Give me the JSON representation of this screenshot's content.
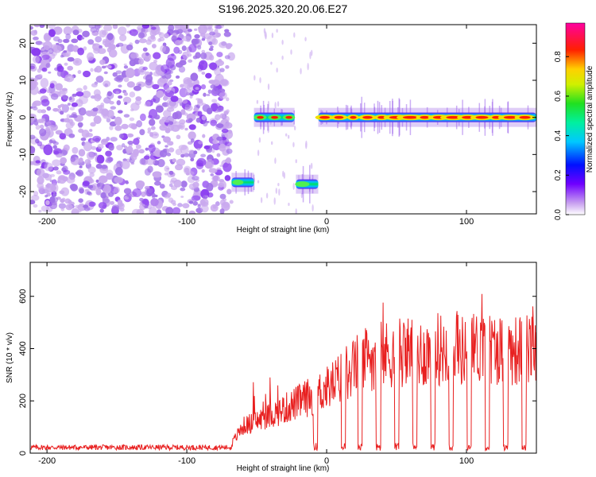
{
  "title": "S196.2025.320.20.06.E27",
  "colors": {
    "snr_line": "#e82020",
    "frame": "#000000",
    "sparse_fill": "#c9a8ee",
    "sparse_dark": "#8a3cf0"
  },
  "chart_data": [
    {
      "type": "heatmap",
      "title": "",
      "xlabel": "Height of straight line (km)",
      "ylabel": "Frequency (Hz)",
      "xlim": [
        -212,
        150
      ],
      "ylim": [
        -26,
        25
      ],
      "x_ticks": [
        -200,
        -100,
        0,
        100
      ],
      "y_ticks": [
        -20,
        -10,
        0,
        10,
        20
      ],
      "x_tick_labels": [
        "-200",
        "-100",
        "0",
        "100"
      ],
      "y_tick_labels": [
        "-20",
        "-10",
        "0",
        "10",
        "20"
      ],
      "colorbar": {
        "label": "Normalized spectral amplitude",
        "range": [
          0,
          0.97
        ],
        "ticks": [
          0,
          0.2,
          0.4,
          0.6,
          0.8
        ],
        "tick_labels": [
          "0.0",
          "0.2",
          "0.4",
          "0.6",
          "0.8"
        ]
      },
      "noise_region": {
        "x_range": [
          -212,
          -68
        ],
        "description_value": 0.15
      },
      "segments": [
        {
          "x_start": -68,
          "x_end": -52,
          "freq": -17.5,
          "peak": 0.5
        },
        {
          "x_start": -52,
          "x_end": -23,
          "freq": 0,
          "peak": 0.65
        },
        {
          "x_start": -22,
          "x_end": -6,
          "freq": -18,
          "peak": 0.55
        },
        {
          "x_start": -6,
          "x_end": 150,
          "freq": 0,
          "peak": 0.97
        }
      ]
    },
    {
      "type": "line",
      "title": "",
      "xlabel": "Height of straight line (km)",
      "ylabel": "SNR (10 * v/v)",
      "xlim": [
        -212,
        150
      ],
      "ylim": [
        0,
        730
      ],
      "x_ticks": [
        -200,
        -100,
        0,
        100
      ],
      "y_ticks": [
        0,
        200,
        400,
        600
      ],
      "x_tick_labels": [
        "-200",
        "-100",
        "0",
        "100"
      ],
      "y_tick_labels": [
        "0",
        "200",
        "400",
        "600"
      ],
      "series": [
        {
          "name": "SNR",
          "x": [
            -212,
            -180,
            -140,
            -100,
            -70,
            -60,
            -40,
            -20,
            0,
            10,
            20,
            30,
            40,
            50,
            60,
            70,
            80,
            90,
            100,
            110,
            120,
            130,
            140,
            150
          ],
          "values": [
            20,
            20,
            20,
            20,
            22,
            120,
            170,
            230,
            290,
            340,
            390,
            430,
            440,
            450,
            460,
            450,
            470,
            470,
            460,
            480,
            470,
            465,
            460,
            470
          ]
        }
      ],
      "dips_x": [
        -8,
        12,
        24,
        37,
        50,
        63,
        76,
        89,
        102,
        115,
        128,
        141
      ]
    }
  ]
}
